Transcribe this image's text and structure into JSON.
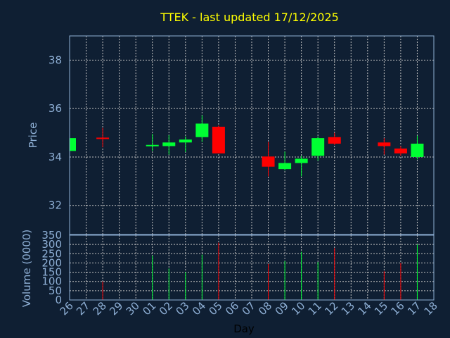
{
  "chart_data": {
    "type": "candlestick",
    "title": "TTEK - last updated 17/12/2025",
    "xlabel": "Day",
    "x": [
      "26",
      "27",
      "28",
      "29",
      "30",
      "01",
      "02",
      "03",
      "04",
      "05",
      "06",
      "07",
      "08",
      "09",
      "10",
      "11",
      "12",
      "13",
      "14",
      "15",
      "16",
      "17",
      "18"
    ],
    "price": {
      "ylabel": "Price",
      "ylim": [
        30.8,
        39.0
      ],
      "yticks": [
        32,
        34,
        36,
        38
      ],
      "candles": [
        {
          "day": "26",
          "open": 34.25,
          "close": 34.78,
          "high": 34.78,
          "low": 34.25
        },
        {
          "day": "28",
          "open": 34.8,
          "close": 34.75,
          "high": 35.2,
          "low": 34.4
        },
        {
          "day": "01",
          "open": 34.45,
          "close": 34.5,
          "high": 34.95,
          "low": 34.25
        },
        {
          "day": "02",
          "open": 34.45,
          "close": 34.6,
          "high": 34.9,
          "low": 34.1
        },
        {
          "day": "03",
          "open": 34.6,
          "close": 34.72,
          "high": 34.85,
          "low": 34.2
        },
        {
          "day": "04",
          "open": 34.82,
          "close": 35.38,
          "high": 35.72,
          "low": 34.62
        },
        {
          "day": "05",
          "open": 35.25,
          "close": 34.15,
          "high": 35.3,
          "low": 34.15
        },
        {
          "day": "08",
          "open": 34.02,
          "close": 33.6,
          "high": 34.62,
          "low": 33.2
        },
        {
          "day": "09",
          "open": 33.5,
          "close": 33.75,
          "high": 34.22,
          "low": 33.45
        },
        {
          "day": "10",
          "open": 33.75,
          "close": 33.93,
          "high": 34.05,
          "low": 33.2
        },
        {
          "day": "11",
          "open": 34.05,
          "close": 34.78,
          "high": 34.85,
          "low": 33.85
        },
        {
          "day": "12",
          "open": 34.82,
          "close": 34.55,
          "high": 35.0,
          "low": 34.5
        },
        {
          "day": "15",
          "open": 34.6,
          "close": 34.45,
          "high": 34.78,
          "low": 34.1
        },
        {
          "day": "16",
          "open": 34.35,
          "close": 34.15,
          "high": 34.45,
          "low": 34.05
        },
        {
          "day": "17",
          "open": 34.0,
          "close": 34.55,
          "high": 34.88,
          "low": 33.9
        }
      ]
    },
    "volume": {
      "ylabel": "Volume (0000)",
      "ylim": [
        0,
        350
      ],
      "yticks": [
        0,
        50,
        100,
        150,
        200,
        250,
        300,
        350
      ],
      "bars": [
        {
          "day": "28",
          "value": 100,
          "direction": "down"
        },
        {
          "day": "01",
          "value": 240,
          "direction": "up"
        },
        {
          "day": "02",
          "value": 170,
          "direction": "up"
        },
        {
          "day": "03",
          "value": 150,
          "direction": "up"
        },
        {
          "day": "04",
          "value": 245,
          "direction": "up"
        },
        {
          "day": "05",
          "value": 310,
          "direction": "down"
        },
        {
          "day": "08",
          "value": 195,
          "direction": "down"
        },
        {
          "day": "09",
          "value": 210,
          "direction": "up"
        },
        {
          "day": "10",
          "value": 260,
          "direction": "up"
        },
        {
          "day": "11",
          "value": 205,
          "direction": "up"
        },
        {
          "day": "12",
          "value": 280,
          "direction": "down"
        },
        {
          "day": "15",
          "value": 155,
          "direction": "down"
        },
        {
          "day": "16",
          "value": 200,
          "direction": "down"
        },
        {
          "day": "17",
          "value": 300,
          "direction": "up"
        }
      ]
    },
    "grid": true,
    "colors": {
      "up": "#00ff33",
      "down": "#ff0000",
      "axis": "#8fb0d6",
      "grid": "#c0c0c0",
      "title": "#ffff00",
      "background": "#0f1f33"
    }
  }
}
